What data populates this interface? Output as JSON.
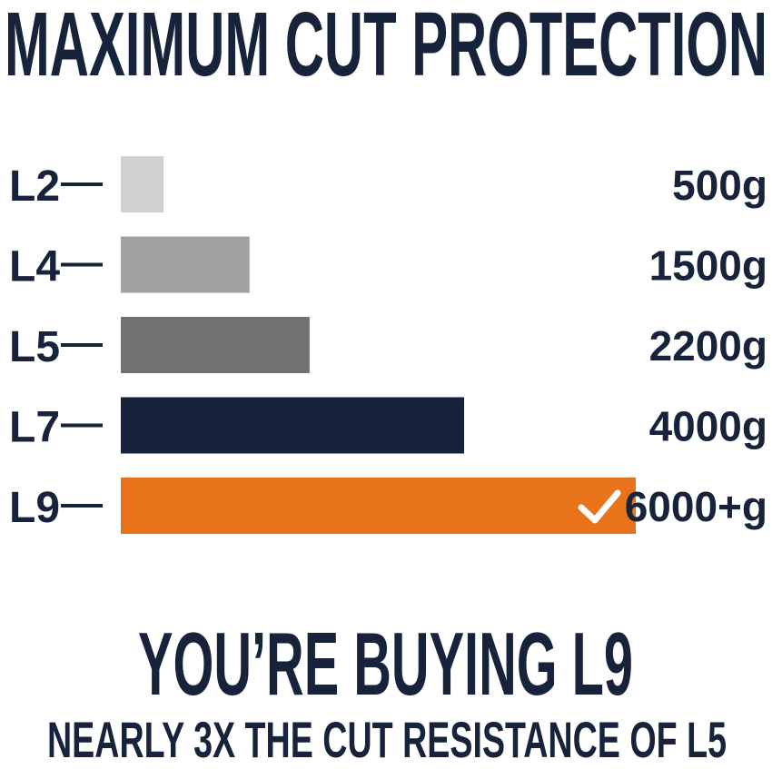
{
  "chart_data": {
    "type": "hbar",
    "title": "MAXIMUM CUT PROTECTION",
    "categories": [
      "L2",
      "L4",
      "L5",
      "L7",
      "L9"
    ],
    "values": [
      500,
      1500,
      2200,
      4000,
      6000
    ],
    "value_labels": [
      "500g",
      "1500g",
      "2200g",
      "4000g",
      "6000+g"
    ],
    "colors": [
      "#d0d0d0",
      "#a2a2a2",
      "#727272",
      "#17233a",
      "#e8731a"
    ],
    "headline": "YOU’RE BUYING L9",
    "subheadline": "NEARLY 3X THE CUT RESISTANCE OF L5"
  }
}
